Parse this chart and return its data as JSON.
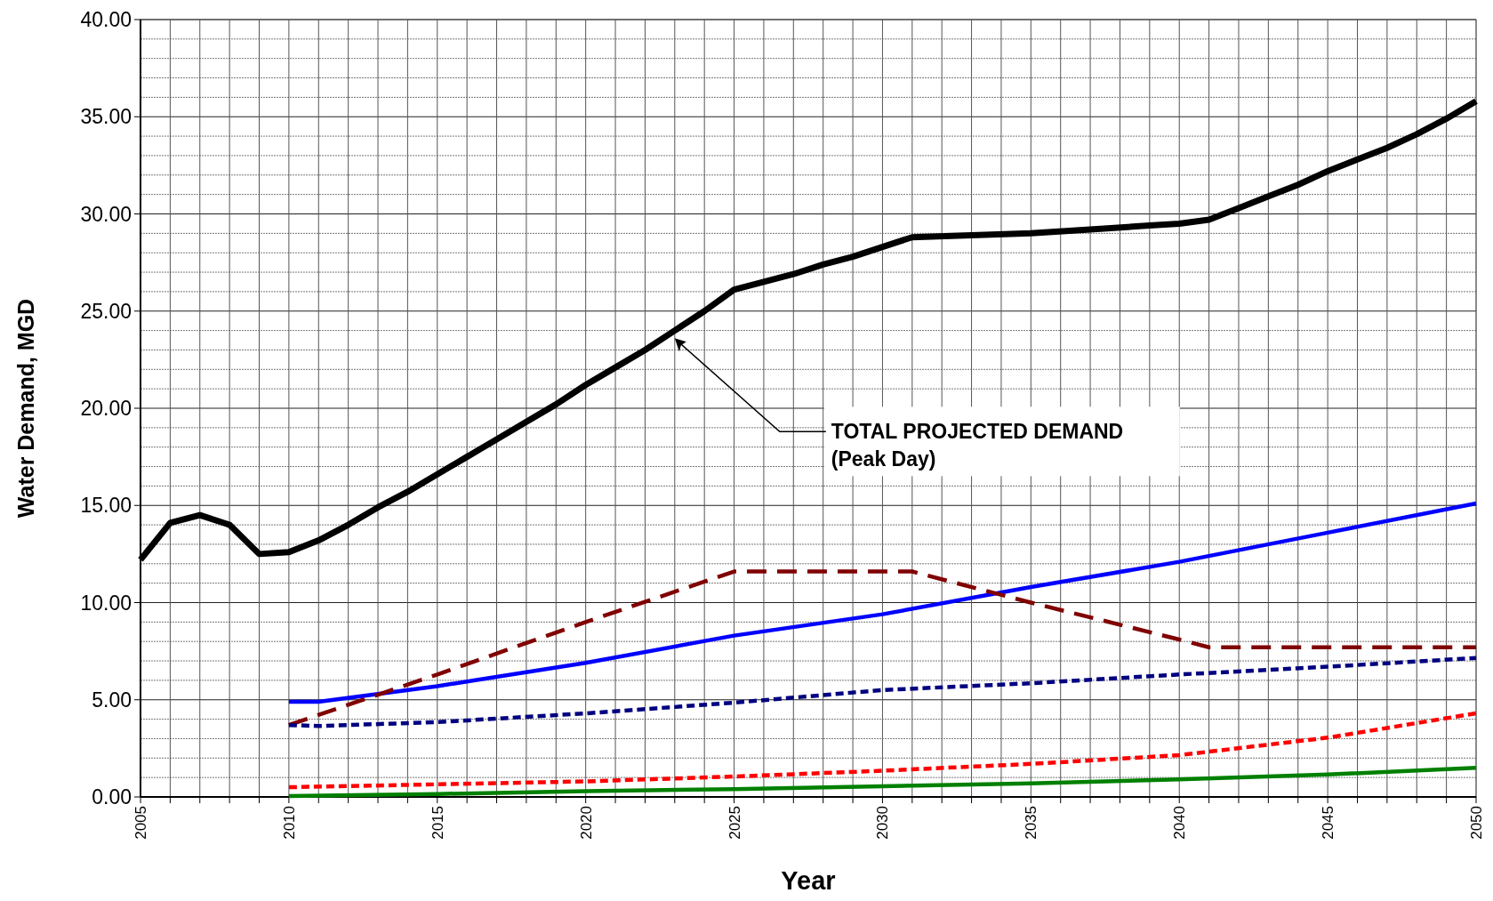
{
  "chart_data": {
    "type": "line",
    "xlabel": "Year",
    "ylabel": "Water Demand, MGD",
    "xlim": [
      2005,
      2050
    ],
    "ylim": [
      0,
      40
    ],
    "xticks": [
      2005,
      {
        "value": 2006,
        "label": null
      },
      {
        "value": 2007,
        "label": null
      },
      {
        "value": 2008,
        "label": null
      },
      {
        "value": 2009,
        "label": null
      },
      2010,
      {
        "value": 2011,
        "label": null
      },
      {
        "value": 2012,
        "label": null
      },
      {
        "value": 2013,
        "label": null
      },
      {
        "value": 2014,
        "label": null
      },
      2015,
      {
        "value": 2016,
        "label": null
      },
      {
        "value": 2017,
        "label": null
      },
      {
        "value": 2018,
        "label": null
      },
      {
        "value": 2019,
        "label": null
      },
      2020,
      {
        "value": 2021,
        "label": null
      },
      {
        "value": 2022,
        "label": null
      },
      {
        "value": 2023,
        "label": null
      },
      {
        "value": 2024,
        "label": null
      },
      2025,
      {
        "value": 2026,
        "label": null
      },
      {
        "value": 2027,
        "label": null
      },
      {
        "value": 2028,
        "label": null
      },
      {
        "value": 2029,
        "label": null
      },
      2030,
      {
        "value": 2031,
        "label": null
      },
      {
        "value": 2032,
        "label": null
      },
      {
        "value": 2033,
        "label": null
      },
      {
        "value": 2034,
        "label": null
      },
      2035,
      {
        "value": 2036,
        "label": null
      },
      {
        "value": 2037,
        "label": null
      },
      {
        "value": 2038,
        "label": null
      },
      {
        "value": 2039,
        "label": null
      },
      2040,
      {
        "value": 2041,
        "label": null
      },
      {
        "value": 2042,
        "label": null
      },
      {
        "value": 2043,
        "label": null
      },
      {
        "value": 2044,
        "label": null
      },
      2045,
      {
        "value": 2046,
        "label": null
      },
      {
        "value": 2047,
        "label": null
      },
      {
        "value": 2048,
        "label": null
      },
      {
        "value": 2049,
        "label": null
      },
      2050
    ],
    "yticks": [
      {
        "value": 0,
        "label": "0.00"
      },
      {
        "value": 1,
        "label": null
      },
      {
        "value": 2,
        "label": null
      },
      {
        "value": 3,
        "label": null
      },
      {
        "value": 4,
        "label": null
      },
      {
        "value": 5,
        "label": "5.00"
      },
      {
        "value": 6,
        "label": null
      },
      {
        "value": 7,
        "label": null
      },
      {
        "value": 8,
        "label": null
      },
      {
        "value": 9,
        "label": null
      },
      {
        "value": 10,
        "label": "10.00"
      },
      {
        "value": 11,
        "label": null
      },
      {
        "value": 12,
        "label": null
      },
      {
        "value": 13,
        "label": null
      },
      {
        "value": 14,
        "label": null
      },
      {
        "value": 15,
        "label": "15.00"
      },
      {
        "value": 16,
        "label": null
      },
      {
        "value": 17,
        "label": null
      },
      {
        "value": 18,
        "label": null
      },
      {
        "value": 19,
        "label": null
      },
      {
        "value": 20,
        "label": "20.00"
      },
      {
        "value": 21,
        "label": null
      },
      {
        "value": 22,
        "label": null
      },
      {
        "value": 23,
        "label": null
      },
      {
        "value": 24,
        "label": null
      },
      {
        "value": 25,
        "label": "25.00"
      },
      {
        "value": 26,
        "label": null
      },
      {
        "value": 27,
        "label": null
      },
      {
        "value": 28,
        "label": null
      },
      {
        "value": 29,
        "label": null
      },
      {
        "value": 30,
        "label": "30.00"
      },
      {
        "value": 31,
        "label": null
      },
      {
        "value": 32,
        "label": null
      },
      {
        "value": 33,
        "label": null
      },
      {
        "value": 34,
        "label": null
      },
      {
        "value": 35,
        "label": "35.00"
      },
      {
        "value": 36,
        "label": null
      },
      {
        "value": 37,
        "label": null
      },
      {
        "value": 38,
        "label": null
      },
      {
        "value": 39,
        "label": null
      },
      {
        "value": 40,
        "label": "40.00"
      }
    ],
    "grid": true,
    "annotations": [
      {
        "text": "TOTAL PROJECTED DEMAND\n(Peak Day)",
        "x": 2023,
        "y": 23.6
      }
    ],
    "series": [
      {
        "color": "#000000",
        "line_style": "solid",
        "x": [
          2005,
          2006,
          2007,
          2008,
          2009,
          2010,
          2011,
          2012,
          2013,
          2014,
          2015,
          2016,
          2017,
          2018,
          2019,
          2020,
          2021,
          2022,
          2023,
          2024,
          2025,
          2026,
          2027,
          2028,
          2029,
          2030,
          2031,
          2033,
          2035,
          2037,
          2039,
          2040,
          2041,
          2042,
          2043,
          2044,
          2045,
          2046,
          2047,
          2048,
          2049,
          2050
        ],
        "values": [
          12.2,
          14.1,
          14.5,
          14.0,
          12.5,
          12.6,
          13.2,
          14.0,
          14.9,
          15.7,
          16.6,
          17.5,
          18.4,
          19.3,
          20.2,
          21.2,
          22.1,
          23.0,
          24.0,
          25.0,
          26.1,
          26.5,
          26.9,
          27.4,
          27.8,
          28.3,
          28.8,
          28.9,
          29.0,
          29.2,
          29.4,
          29.5,
          29.7,
          30.3,
          30.9,
          31.5,
          32.2,
          32.8,
          33.4,
          34.1,
          34.9,
          35.8
        ]
      },
      {
        "color": "#0000ff",
        "line_style": "solid",
        "x": [
          2010,
          2011,
          2015,
          2020,
          2025,
          2030,
          2035,
          2040,
          2045,
          2050
        ],
        "values": [
          4.9,
          4.9,
          5.7,
          6.9,
          8.3,
          9.4,
          10.8,
          12.1,
          13.6,
          15.1
        ]
      },
      {
        "color": "#800000",
        "line_style": "dashed",
        "x": [
          2010,
          2015,
          2020,
          2025,
          2031,
          2035,
          2040,
          2041,
          2050
        ],
        "values": [
          3.7,
          6.3,
          9.0,
          11.6,
          11.6,
          10.0,
          8.1,
          7.7,
          7.7
        ]
      },
      {
        "color": "#000080",
        "line_style": "dotted",
        "x": [
          2010,
          2011,
          2015,
          2020,
          2025,
          2030,
          2035,
          2040,
          2045,
          2050
        ],
        "values": [
          3.7,
          3.65,
          3.85,
          4.3,
          4.85,
          5.5,
          5.85,
          6.3,
          6.7,
          7.15
        ]
      },
      {
        "color": "#ff0000",
        "line_style": "dotted",
        "x": [
          2010,
          2015,
          2020,
          2025,
          2030,
          2035,
          2040,
          2045,
          2050
        ],
        "values": [
          0.5,
          0.65,
          0.8,
          1.05,
          1.35,
          1.7,
          2.15,
          3.05,
          4.3
        ]
      },
      {
        "color": "#008000",
        "line_style": "solid",
        "x": [
          2010,
          2015,
          2020,
          2025,
          2030,
          2035,
          2040,
          2045,
          2050
        ],
        "values": [
          0.05,
          0.15,
          0.3,
          0.4,
          0.55,
          0.7,
          0.9,
          1.15,
          1.5
        ]
      }
    ]
  }
}
